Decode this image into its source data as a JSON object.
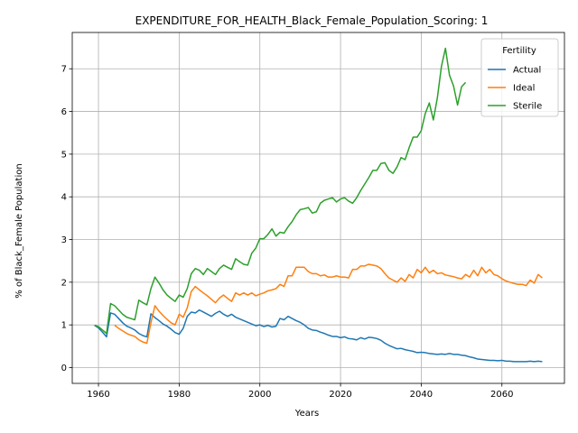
{
  "chart_data": {
    "type": "line",
    "title": "EXPENDITURE_FOR_HEALTH_Black_Female_Population_Scoring: 1",
    "xlabel": "Years",
    "ylabel": "% of Black_Female Population",
    "xlim": [
      1953.5,
      2075.5
    ],
    "ylim": [
      -0.37,
      7.85
    ],
    "xticks": [
      1960,
      1980,
      2000,
      2020,
      2040,
      2060
    ],
    "yticks": [
      0,
      1,
      2,
      3,
      4,
      5,
      6,
      7
    ],
    "grid": true,
    "legend": {
      "title": "Fertility",
      "placement": "upper right"
    },
    "series": [
      {
        "name": "Actual",
        "color": "#1f77b4",
        "points": [
          [
            1959,
            0.99
          ],
          [
            1960,
            0.93
          ],
          [
            1961,
            0.83
          ],
          [
            1962,
            0.72
          ],
          [
            1963,
            1.28
          ],
          [
            1964,
            1.25
          ],
          [
            1965,
            1.15
          ],
          [
            1966,
            1.05
          ],
          [
            1967,
            0.97
          ],
          [
            1968,
            0.93
          ],
          [
            1969,
            0.88
          ],
          [
            1970,
            0.8
          ],
          [
            1971,
            0.75
          ],
          [
            1972,
            0.72
          ],
          [
            1973,
            1.26
          ],
          [
            1974,
            1.17
          ],
          [
            1975,
            1.1
          ],
          [
            1976,
            1.02
          ],
          [
            1977,
            0.97
          ],
          [
            1978,
            0.9
          ],
          [
            1979,
            0.82
          ],
          [
            1980,
            0.78
          ],
          [
            1981,
            0.92
          ],
          [
            1982,
            1.2
          ],
          [
            1983,
            1.3
          ],
          [
            1984,
            1.28
          ],
          [
            1985,
            1.35
          ],
          [
            1986,
            1.3
          ],
          [
            1987,
            1.25
          ],
          [
            1988,
            1.2
          ],
          [
            1989,
            1.27
          ],
          [
            1990,
            1.32
          ],
          [
            1991,
            1.25
          ],
          [
            1992,
            1.2
          ],
          [
            1993,
            1.25
          ],
          [
            1994,
            1.18
          ],
          [
            1995,
            1.14
          ],
          [
            1996,
            1.1
          ],
          [
            1997,
            1.06
          ],
          [
            1998,
            1.02
          ],
          [
            1999,
            0.98
          ],
          [
            2000,
            1.0
          ],
          [
            2001,
            0.96
          ],
          [
            2002,
            0.99
          ],
          [
            2003,
            0.95
          ],
          [
            2004,
            0.97
          ],
          [
            2005,
            1.15
          ],
          [
            2006,
            1.12
          ],
          [
            2007,
            1.2
          ],
          [
            2008,
            1.15
          ],
          [
            2009,
            1.1
          ],
          [
            2010,
            1.06
          ],
          [
            2011,
            1.0
          ],
          [
            2012,
            0.92
          ],
          [
            2013,
            0.88
          ],
          [
            2014,
            0.87
          ],
          [
            2015,
            0.83
          ],
          [
            2016,
            0.8
          ],
          [
            2017,
            0.76
          ],
          [
            2018,
            0.73
          ],
          [
            2019,
            0.73
          ],
          [
            2020,
            0.7
          ],
          [
            2021,
            0.72
          ],
          [
            2022,
            0.68
          ],
          [
            2023,
            0.67
          ],
          [
            2024,
            0.65
          ],
          [
            2025,
            0.7
          ],
          [
            2026,
            0.67
          ],
          [
            2027,
            0.71
          ],
          [
            2028,
            0.7
          ],
          [
            2029,
            0.68
          ],
          [
            2030,
            0.64
          ],
          [
            2031,
            0.57
          ],
          [
            2032,
            0.52
          ],
          [
            2033,
            0.48
          ],
          [
            2034,
            0.44
          ],
          [
            2035,
            0.45
          ],
          [
            2036,
            0.42
          ],
          [
            2037,
            0.4
          ],
          [
            2038,
            0.38
          ],
          [
            2039,
            0.35
          ],
          [
            2040,
            0.36
          ],
          [
            2041,
            0.35
          ],
          [
            2042,
            0.33
          ],
          [
            2043,
            0.32
          ],
          [
            2044,
            0.31
          ],
          [
            2045,
            0.32
          ],
          [
            2046,
            0.31
          ],
          [
            2047,
            0.33
          ],
          [
            2048,
            0.31
          ],
          [
            2049,
            0.31
          ],
          [
            2050,
            0.29
          ],
          [
            2051,
            0.28
          ],
          [
            2052,
            0.25
          ],
          [
            2053,
            0.23
          ],
          [
            2054,
            0.2
          ],
          [
            2055,
            0.19
          ],
          [
            2056,
            0.18
          ],
          [
            2057,
            0.17
          ],
          [
            2058,
            0.17
          ],
          [
            2059,
            0.16
          ],
          [
            2060,
            0.17
          ],
          [
            2061,
            0.15
          ],
          [
            2062,
            0.15
          ],
          [
            2063,
            0.14
          ],
          [
            2064,
            0.14
          ],
          [
            2065,
            0.14
          ],
          [
            2066,
            0.14
          ],
          [
            2067,
            0.15
          ],
          [
            2068,
            0.14
          ],
          [
            2069,
            0.15
          ],
          [
            2070,
            0.14
          ]
        ]
      },
      {
        "name": "Ideal",
        "color": "#ff7f0e",
        "points": [
          [
            1964,
            0.99
          ],
          [
            1965,
            0.92
          ],
          [
            1966,
            0.86
          ],
          [
            1967,
            0.8
          ],
          [
            1968,
            0.76
          ],
          [
            1969,
            0.73
          ],
          [
            1970,
            0.65
          ],
          [
            1971,
            0.6
          ],
          [
            1972,
            0.57
          ],
          [
            1973,
            1.05
          ],
          [
            1974,
            1.45
          ],
          [
            1975,
            1.32
          ],
          [
            1976,
            1.22
          ],
          [
            1977,
            1.13
          ],
          [
            1978,
            1.05
          ],
          [
            1979,
            1.0
          ],
          [
            1980,
            1.25
          ],
          [
            1981,
            1.18
          ],
          [
            1982,
            1.4
          ],
          [
            1983,
            1.78
          ],
          [
            1984,
            1.9
          ],
          [
            1985,
            1.82
          ],
          [
            1986,
            1.75
          ],
          [
            1987,
            1.68
          ],
          [
            1988,
            1.6
          ],
          [
            1989,
            1.52
          ],
          [
            1990,
            1.63
          ],
          [
            1991,
            1.7
          ],
          [
            1992,
            1.62
          ],
          [
            1993,
            1.55
          ],
          [
            1994,
            1.75
          ],
          [
            1995,
            1.7
          ],
          [
            1996,
            1.75
          ],
          [
            1997,
            1.7
          ],
          [
            1998,
            1.75
          ],
          [
            1999,
            1.68
          ],
          [
            2000,
            1.72
          ],
          [
            2001,
            1.75
          ],
          [
            2002,
            1.8
          ],
          [
            2003,
            1.82
          ],
          [
            2004,
            1.85
          ],
          [
            2005,
            1.95
          ],
          [
            2006,
            1.9
          ],
          [
            2007,
            2.15
          ],
          [
            2008,
            2.15
          ],
          [
            2009,
            2.35
          ],
          [
            2010,
            2.35
          ],
          [
            2011,
            2.35
          ],
          [
            2012,
            2.25
          ],
          [
            2013,
            2.2
          ],
          [
            2014,
            2.2
          ],
          [
            2015,
            2.15
          ],
          [
            2016,
            2.17
          ],
          [
            2017,
            2.12
          ],
          [
            2018,
            2.12
          ],
          [
            2019,
            2.15
          ],
          [
            2020,
            2.12
          ],
          [
            2021,
            2.12
          ],
          [
            2022,
            2.1
          ],
          [
            2023,
            2.3
          ],
          [
            2024,
            2.3
          ],
          [
            2025,
            2.38
          ],
          [
            2026,
            2.38
          ],
          [
            2027,
            2.42
          ],
          [
            2028,
            2.4
          ],
          [
            2029,
            2.38
          ],
          [
            2030,
            2.32
          ],
          [
            2031,
            2.2
          ],
          [
            2032,
            2.1
          ],
          [
            2033,
            2.05
          ],
          [
            2034,
            2.0
          ],
          [
            2035,
            2.1
          ],
          [
            2036,
            2.02
          ],
          [
            2037,
            2.18
          ],
          [
            2038,
            2.1
          ],
          [
            2039,
            2.3
          ],
          [
            2040,
            2.22
          ],
          [
            2041,
            2.35
          ],
          [
            2042,
            2.22
          ],
          [
            2043,
            2.28
          ],
          [
            2044,
            2.2
          ],
          [
            2045,
            2.22
          ],
          [
            2046,
            2.17
          ],
          [
            2047,
            2.15
          ],
          [
            2048,
            2.13
          ],
          [
            2049,
            2.1
          ],
          [
            2050,
            2.08
          ],
          [
            2051,
            2.18
          ],
          [
            2052,
            2.12
          ],
          [
            2053,
            2.28
          ],
          [
            2054,
            2.15
          ],
          [
            2055,
            2.35
          ],
          [
            2056,
            2.22
          ],
          [
            2057,
            2.3
          ],
          [
            2058,
            2.18
          ],
          [
            2059,
            2.15
          ],
          [
            2060,
            2.08
          ],
          [
            2061,
            2.03
          ],
          [
            2062,
            2.0
          ],
          [
            2063,
            1.97
          ],
          [
            2064,
            1.95
          ],
          [
            2065,
            1.95
          ],
          [
            2066,
            1.92
          ],
          [
            2067,
            2.05
          ],
          [
            2068,
            1.98
          ],
          [
            2069,
            2.18
          ],
          [
            2070,
            2.1
          ]
        ]
      },
      {
        "name": "Sterile",
        "color": "#2ca02c",
        "points": [
          [
            1959,
            0.99
          ],
          [
            1960,
            0.96
          ],
          [
            1961,
            0.88
          ],
          [
            1962,
            0.8
          ],
          [
            1963,
            1.5
          ],
          [
            1964,
            1.45
          ],
          [
            1965,
            1.35
          ],
          [
            1966,
            1.25
          ],
          [
            1967,
            1.18
          ],
          [
            1968,
            1.15
          ],
          [
            1969,
            1.12
          ],
          [
            1970,
            1.58
          ],
          [
            1971,
            1.52
          ],
          [
            1972,
            1.47
          ],
          [
            1973,
            1.85
          ],
          [
            1974,
            2.12
          ],
          [
            1975,
            1.98
          ],
          [
            1976,
            1.82
          ],
          [
            1977,
            1.7
          ],
          [
            1978,
            1.62
          ],
          [
            1979,
            1.55
          ],
          [
            1980,
            1.7
          ],
          [
            1981,
            1.65
          ],
          [
            1982,
            1.85
          ],
          [
            1983,
            2.2
          ],
          [
            1984,
            2.32
          ],
          [
            1985,
            2.28
          ],
          [
            1986,
            2.18
          ],
          [
            1987,
            2.32
          ],
          [
            1988,
            2.25
          ],
          [
            1989,
            2.18
          ],
          [
            1990,
            2.32
          ],
          [
            1991,
            2.4
          ],
          [
            1992,
            2.35
          ],
          [
            1993,
            2.3
          ],
          [
            1994,
            2.55
          ],
          [
            1995,
            2.48
          ],
          [
            1996,
            2.42
          ],
          [
            1997,
            2.4
          ],
          [
            1998,
            2.68
          ],
          [
            1999,
            2.8
          ],
          [
            2000,
            3.02
          ],
          [
            2001,
            3.02
          ],
          [
            2002,
            3.12
          ],
          [
            2003,
            3.25
          ],
          [
            2004,
            3.08
          ],
          [
            2005,
            3.17
          ],
          [
            2006,
            3.15
          ],
          [
            2007,
            3.3
          ],
          [
            2008,
            3.42
          ],
          [
            2009,
            3.58
          ],
          [
            2010,
            3.7
          ],
          [
            2011,
            3.72
          ],
          [
            2012,
            3.75
          ],
          [
            2013,
            3.62
          ],
          [
            2014,
            3.65
          ],
          [
            2015,
            3.85
          ],
          [
            2016,
            3.92
          ],
          [
            2017,
            3.95
          ],
          [
            2018,
            3.98
          ],
          [
            2019,
            3.88
          ],
          [
            2020,
            3.95
          ],
          [
            2021,
            3.98
          ],
          [
            2022,
            3.9
          ],
          [
            2023,
            3.85
          ],
          [
            2024,
            3.98
          ],
          [
            2025,
            4.15
          ],
          [
            2026,
            4.3
          ],
          [
            2027,
            4.45
          ],
          [
            2028,
            4.62
          ],
          [
            2029,
            4.62
          ],
          [
            2030,
            4.78
          ],
          [
            2031,
            4.8
          ],
          [
            2032,
            4.62
          ],
          [
            2033,
            4.55
          ],
          [
            2034,
            4.7
          ],
          [
            2035,
            4.92
          ],
          [
            2036,
            4.87
          ],
          [
            2037,
            5.15
          ],
          [
            2038,
            5.4
          ],
          [
            2039,
            5.4
          ],
          [
            2040,
            5.55
          ],
          [
            2041,
            5.95
          ],
          [
            2042,
            6.2
          ],
          [
            2043,
            5.8
          ],
          [
            2044,
            6.32
          ],
          [
            2045,
            7.05
          ],
          [
            2046,
            7.48
          ],
          [
            2047,
            6.85
          ],
          [
            2048,
            6.6
          ],
          [
            2049,
            6.15
          ],
          [
            2050,
            6.58
          ],
          [
            2051,
            6.68
          ]
        ]
      }
    ]
  }
}
